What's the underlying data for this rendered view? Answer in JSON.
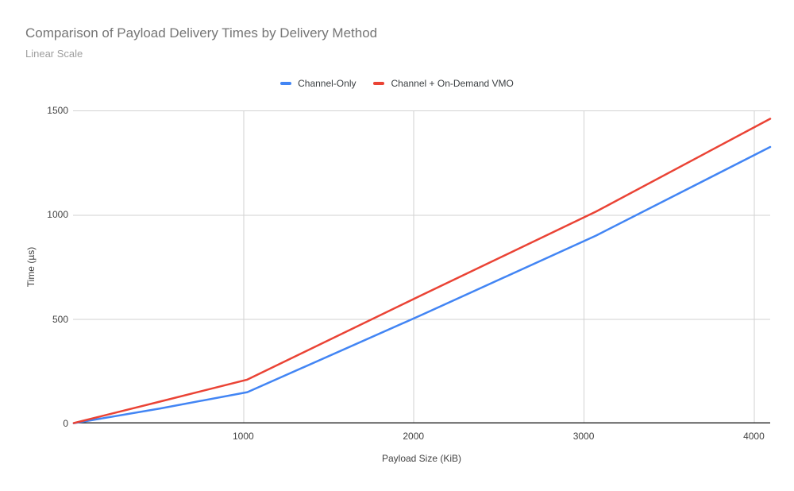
{
  "chart_data": {
    "type": "line",
    "title": "Comparison of Payload Delivery Times by Delivery Method",
    "subtitle": "Linear Scale",
    "xlabel": "Payload Size (KiB)",
    "ylabel": "Time (µs)",
    "x_range": [
      0,
      4096
    ],
    "y_range": [
      0,
      1500
    ],
    "x_ticks": [
      1000,
      2000,
      3000,
      4000
    ],
    "y_ticks": [
      0,
      500,
      1000,
      1500
    ],
    "grid": true,
    "legend_position": "top-center",
    "series": [
      {
        "name": "Channel-Only",
        "color": "#4285f4",
        "points": [
          [
            4,
            1
          ],
          [
            512,
            72
          ],
          [
            1024,
            150
          ],
          [
            2048,
            520
          ],
          [
            3072,
            900
          ],
          [
            4096,
            1325
          ]
        ]
      },
      {
        "name": "Channel + On-Demand VMO",
        "color": "#ea4335",
        "points": [
          [
            4,
            2
          ],
          [
            512,
            105
          ],
          [
            1024,
            210
          ],
          [
            2048,
            615
          ],
          [
            3072,
            1015
          ],
          [
            4096,
            1460
          ]
        ]
      }
    ],
    "colors": {
      "title_text": "#757575",
      "subtitle_text": "#9e9e9e",
      "axis_text": "#424242",
      "legend_text": "#3c4043",
      "gridline": "#d2d2d2",
      "axis_line": "#333333",
      "background": "#ffffff"
    }
  }
}
